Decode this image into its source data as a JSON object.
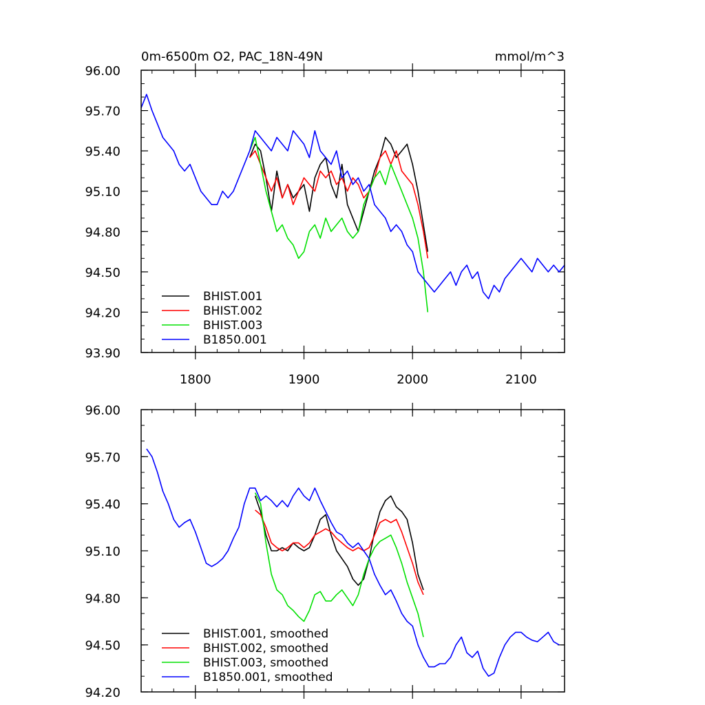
{
  "chart_data": [
    {
      "type": "line",
      "title": "0m-6500m O2, PAC_18N-49N",
      "units": "mmol/m^3",
      "xlim": [
        1750,
        2140
      ],
      "ylim": [
        93.9,
        96.0
      ],
      "x_ticks": [
        1800,
        1900,
        2000,
        2100
      ],
      "x_tick_labels": [
        "1800",
        "1900",
        "2000",
        "2100"
      ],
      "y_ticks": [
        93.9,
        94.2,
        94.5,
        94.8,
        95.1,
        95.4,
        95.7,
        96.0
      ],
      "y_tick_labels": [
        "93.90",
        "94.20",
        "94.50",
        "94.80",
        "95.10",
        "95.40",
        "95.70",
        "96.00"
      ],
      "legend_position": "bottom-left",
      "series": [
        {
          "name": "BHIST.001",
          "color": "#000000",
          "x": [
            1850,
            1855,
            1860,
            1865,
            1870,
            1875,
            1880,
            1885,
            1890,
            1895,
            1900,
            1905,
            1910,
            1915,
            1920,
            1925,
            1930,
            1935,
            1940,
            1945,
            1950,
            1955,
            1960,
            1965,
            1970,
            1975,
            1980,
            1985,
            1990,
            1995,
            2000,
            2005,
            2010,
            2014
          ],
          "y": [
            95.35,
            95.45,
            95.4,
            95.2,
            94.95,
            95.25,
            95.05,
            95.15,
            95.05,
            95.1,
            95.15,
            94.95,
            95.2,
            95.3,
            95.35,
            95.15,
            95.05,
            95.3,
            95.0,
            94.9,
            94.8,
            94.95,
            95.1,
            95.25,
            95.35,
            95.5,
            95.45,
            95.35,
            95.4,
            95.45,
            95.3,
            95.1,
            94.85,
            94.65
          ]
        },
        {
          "name": "BHIST.002",
          "color": "#ff0000",
          "x": [
            1850,
            1855,
            1860,
            1865,
            1870,
            1875,
            1880,
            1885,
            1890,
            1895,
            1900,
            1905,
            1910,
            1915,
            1920,
            1925,
            1930,
            1935,
            1940,
            1945,
            1950,
            1955,
            1960,
            1965,
            1970,
            1975,
            1980,
            1985,
            1990,
            1995,
            2000,
            2005,
            2010,
            2014
          ],
          "y": [
            95.35,
            95.4,
            95.3,
            95.2,
            95.1,
            95.2,
            95.05,
            95.15,
            95.0,
            95.1,
            95.2,
            95.15,
            95.1,
            95.25,
            95.2,
            95.25,
            95.15,
            95.2,
            95.1,
            95.2,
            95.15,
            95.05,
            95.1,
            95.2,
            95.35,
            95.4,
            95.3,
            95.4,
            95.25,
            95.2,
            95.15,
            95.0,
            94.8,
            94.6
          ]
        },
        {
          "name": "BHIST.003",
          "color": "#00e000",
          "x": [
            1850,
            1855,
            1860,
            1865,
            1870,
            1875,
            1880,
            1885,
            1890,
            1895,
            1900,
            1905,
            1910,
            1915,
            1920,
            1925,
            1930,
            1935,
            1940,
            1945,
            1950,
            1955,
            1960,
            1965,
            1970,
            1975,
            1980,
            1985,
            1990,
            1995,
            2000,
            2005,
            2010,
            2014
          ],
          "y": [
            95.4,
            95.5,
            95.3,
            95.1,
            94.95,
            94.8,
            94.85,
            94.75,
            94.7,
            94.6,
            94.65,
            94.8,
            94.85,
            94.75,
            94.9,
            94.8,
            94.85,
            94.9,
            94.8,
            94.75,
            94.8,
            95.0,
            95.1,
            95.2,
            95.25,
            95.15,
            95.3,
            95.2,
            95.1,
            95.0,
            94.9,
            94.75,
            94.5,
            94.2
          ]
        },
        {
          "name": "B1850.001",
          "color": "#0000ff",
          "x": [
            1750,
            1755,
            1760,
            1765,
            1770,
            1775,
            1780,
            1785,
            1790,
            1795,
            1800,
            1805,
            1810,
            1815,
            1820,
            1825,
            1830,
            1835,
            1840,
            1845,
            1850,
            1855,
            1860,
            1865,
            1870,
            1875,
            1880,
            1885,
            1890,
            1895,
            1900,
            1905,
            1910,
            1915,
            1920,
            1925,
            1930,
            1935,
            1940,
            1945,
            1950,
            1955,
            1960,
            1965,
            1970,
            1975,
            1980,
            1985,
            1990,
            1995,
            2000,
            2005,
            2010,
            2015,
            2020,
            2025,
            2030,
            2035,
            2040,
            2045,
            2050,
            2055,
            2060,
            2065,
            2070,
            2075,
            2080,
            2085,
            2090,
            2095,
            2100,
            2105,
            2110,
            2115,
            2120,
            2125,
            2130,
            2135,
            2140
          ],
          "y": [
            95.72,
            95.82,
            95.7,
            95.6,
            95.5,
            95.45,
            95.4,
            95.3,
            95.25,
            95.3,
            95.2,
            95.1,
            95.05,
            95.0,
            95.0,
            95.1,
            95.05,
            95.1,
            95.2,
            95.3,
            95.4,
            95.55,
            95.5,
            95.45,
            95.4,
            95.5,
            95.45,
            95.4,
            95.55,
            95.5,
            95.45,
            95.35,
            95.55,
            95.4,
            95.35,
            95.3,
            95.4,
            95.2,
            95.25,
            95.15,
            95.2,
            95.1,
            95.15,
            95.0,
            94.95,
            94.9,
            94.8,
            94.85,
            94.8,
            94.7,
            94.65,
            94.5,
            94.45,
            94.4,
            94.35,
            94.4,
            94.45,
            94.5,
            94.4,
            94.5,
            94.55,
            94.45,
            94.5,
            94.35,
            94.3,
            94.4,
            94.35,
            94.45,
            94.5,
            94.55,
            94.6,
            94.55,
            94.5,
            94.6,
            94.55,
            94.5,
            94.55,
            94.5,
            94.55
          ]
        }
      ]
    },
    {
      "type": "line",
      "xlim": [
        1750,
        2140
      ],
      "ylim": [
        94.2,
        96.0
      ],
      "x_ticks": [
        1800,
        1900,
        2000,
        2100
      ],
      "y_ticks": [
        94.2,
        94.5,
        94.8,
        95.1,
        95.4,
        95.7,
        96.0
      ],
      "y_tick_labels": [
        "94.20",
        "94.50",
        "94.80",
        "95.10",
        "95.40",
        "95.70",
        "96.00"
      ],
      "legend_position": "bottom-left",
      "series": [
        {
          "name": "BHIST.001, smoothed",
          "color": "#000000",
          "x": [
            1855,
            1860,
            1865,
            1870,
            1875,
            1880,
            1885,
            1890,
            1895,
            1900,
            1905,
            1910,
            1915,
            1920,
            1925,
            1930,
            1935,
            1940,
            1945,
            1950,
            1955,
            1960,
            1965,
            1970,
            1975,
            1980,
            1985,
            1990,
            1995,
            2000,
            2005,
            2010
          ],
          "y": [
            95.45,
            95.35,
            95.2,
            95.1,
            95.1,
            95.12,
            95.1,
            95.15,
            95.12,
            95.1,
            95.12,
            95.2,
            95.3,
            95.33,
            95.2,
            95.1,
            95.05,
            95.0,
            94.92,
            94.88,
            94.92,
            95.05,
            95.22,
            95.35,
            95.42,
            95.45,
            95.38,
            95.35,
            95.3,
            95.15,
            94.95,
            94.85
          ]
        },
        {
          "name": "BHIST.002, smoothed",
          "color": "#ff0000",
          "x": [
            1855,
            1860,
            1865,
            1870,
            1875,
            1880,
            1885,
            1890,
            1895,
            1900,
            1905,
            1910,
            1915,
            1920,
            1925,
            1930,
            1935,
            1940,
            1945,
            1950,
            1955,
            1960,
            1965,
            1970,
            1975,
            1980,
            1985,
            1990,
            1995,
            2000,
            2005,
            2010
          ],
          "y": [
            95.36,
            95.33,
            95.25,
            95.15,
            95.12,
            95.1,
            95.12,
            95.15,
            95.15,
            95.12,
            95.15,
            95.2,
            95.22,
            95.24,
            95.22,
            95.18,
            95.15,
            95.12,
            95.1,
            95.12,
            95.1,
            95.12,
            95.2,
            95.28,
            95.3,
            95.28,
            95.3,
            95.22,
            95.12,
            95.02,
            94.9,
            94.82
          ]
        },
        {
          "name": "BHIST.003, smoothed",
          "color": "#00e000",
          "x": [
            1855,
            1860,
            1865,
            1870,
            1875,
            1880,
            1885,
            1890,
            1895,
            1900,
            1905,
            1910,
            1915,
            1920,
            1925,
            1930,
            1935,
            1940,
            1945,
            1950,
            1955,
            1960,
            1965,
            1970,
            1975,
            1980,
            1985,
            1990,
            1995,
            2000,
            2005,
            2010
          ],
          "y": [
            95.47,
            95.4,
            95.15,
            94.95,
            94.85,
            94.82,
            94.75,
            94.72,
            94.68,
            94.65,
            94.72,
            94.82,
            94.84,
            94.78,
            94.78,
            94.82,
            94.85,
            94.8,
            94.75,
            94.82,
            94.95,
            95.05,
            95.12,
            95.16,
            95.18,
            95.2,
            95.12,
            95.02,
            94.9,
            94.8,
            94.7,
            94.55
          ]
        },
        {
          "name": "B1850.001, smoothed",
          "color": "#0000ff",
          "x": [
            1755,
            1760,
            1765,
            1770,
            1775,
            1780,
            1785,
            1790,
            1795,
            1800,
            1805,
            1810,
            1815,
            1820,
            1825,
            1830,
            1835,
            1840,
            1845,
            1850,
            1855,
            1860,
            1865,
            1870,
            1875,
            1880,
            1885,
            1890,
            1895,
            1900,
            1905,
            1910,
            1915,
            1920,
            1925,
            1930,
            1935,
            1940,
            1945,
            1950,
            1955,
            1960,
            1965,
            1970,
            1975,
            1980,
            1985,
            1990,
            1995,
            2000,
            2005,
            2010,
            2015,
            2020,
            2025,
            2030,
            2035,
            2040,
            2045,
            2050,
            2055,
            2060,
            2065,
            2070,
            2075,
            2080,
            2085,
            2090,
            2095,
            2100,
            2105,
            2110,
            2115,
            2120,
            2125,
            2130,
            2135
          ],
          "y": [
            95.75,
            95.7,
            95.6,
            95.48,
            95.4,
            95.3,
            95.25,
            95.28,
            95.3,
            95.22,
            95.12,
            95.02,
            95.0,
            95.02,
            95.05,
            95.1,
            95.18,
            95.25,
            95.4,
            95.5,
            95.5,
            95.42,
            95.45,
            95.42,
            95.38,
            95.42,
            95.38,
            95.45,
            95.5,
            95.45,
            95.42,
            95.5,
            95.42,
            95.35,
            95.28,
            95.22,
            95.2,
            95.15,
            95.12,
            95.15,
            95.1,
            95.05,
            94.95,
            94.88,
            94.82,
            94.85,
            94.78,
            94.7,
            94.65,
            94.62,
            94.5,
            94.42,
            94.36,
            94.36,
            94.38,
            94.38,
            94.42,
            94.5,
            94.55,
            94.45,
            94.42,
            94.46,
            94.35,
            94.3,
            94.32,
            94.42,
            94.5,
            94.55,
            94.58,
            94.58,
            94.55,
            94.53,
            94.52,
            94.55,
            94.58,
            94.52,
            94.5
          ]
        }
      ]
    }
  ]
}
